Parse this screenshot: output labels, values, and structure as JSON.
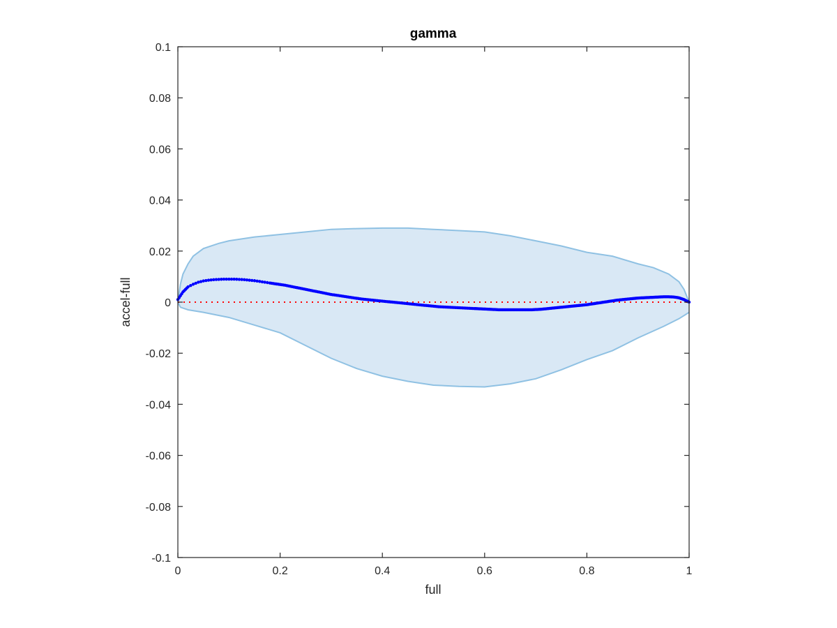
{
  "chart_data": {
    "type": "scatter",
    "title": "gamma",
    "xlabel": "full",
    "ylabel": "accel-full",
    "xlim": [
      0,
      1
    ],
    "ylim": [
      -0.1,
      0.1
    ],
    "x_ticks": [
      0,
      0.2,
      0.4,
      0.6,
      0.8,
      1
    ],
    "x_tick_labels": [
      "0",
      "0.2",
      "0.4",
      "0.6",
      "0.8",
      "1"
    ],
    "y_ticks": [
      -0.1,
      -0.08,
      -0.06,
      -0.04,
      -0.02,
      0,
      0.02,
      0.04,
      0.06,
      0.08,
      0.1
    ],
    "y_tick_labels": [
      "-0.1",
      "-0.08",
      "-0.06",
      "-0.04",
      "-0.02",
      "0",
      "0.02",
      "0.04",
      "0.06",
      "0.08",
      "0.1"
    ],
    "grid": false,
    "colors": {
      "band_fill": "#d9e8f5",
      "band_edge": "#8fc1e3",
      "points": "#0000ff",
      "reference_line": "#ff0000",
      "axes": "#262626"
    },
    "reference_line": {
      "y": 0,
      "style": "dotted"
    },
    "band_upper": {
      "x": [
        0,
        0.005,
        0.01,
        0.02,
        0.03,
        0.05,
        0.08,
        0.1,
        0.15,
        0.2,
        0.25,
        0.3,
        0.35,
        0.4,
        0.45,
        0.5,
        0.55,
        0.6,
        0.65,
        0.7,
        0.75,
        0.8,
        0.85,
        0.9,
        0.93,
        0.96,
        0.98,
        0.99,
        1
      ],
      "y": [
        0,
        0.007,
        0.011,
        0.015,
        0.018,
        0.021,
        0.023,
        0.024,
        0.0255,
        0.0265,
        0.0275,
        0.0285,
        0.0288,
        0.029,
        0.029,
        0.0285,
        0.028,
        0.0275,
        0.026,
        0.024,
        0.022,
        0.0195,
        0.018,
        0.015,
        0.0135,
        0.011,
        0.008,
        0.005,
        0
      ]
    },
    "band_lower": {
      "x": [
        0,
        0.005,
        0.02,
        0.05,
        0.1,
        0.15,
        0.2,
        0.25,
        0.3,
        0.35,
        0.4,
        0.45,
        0.5,
        0.55,
        0.6,
        0.65,
        0.7,
        0.75,
        0.8,
        0.85,
        0.9,
        0.95,
        0.98,
        1
      ],
      "y": [
        0,
        -0.002,
        -0.003,
        -0.004,
        -0.006,
        -0.009,
        -0.012,
        -0.017,
        -0.022,
        -0.026,
        -0.029,
        -0.031,
        -0.0325,
        -0.033,
        -0.0332,
        -0.032,
        -0.03,
        -0.0265,
        -0.0225,
        -0.019,
        -0.014,
        -0.0095,
        -0.0065,
        -0.004
      ]
    },
    "series": [
      {
        "x": [
          0,
          0.005,
          0.01,
          0.015,
          0.02,
          0.03,
          0.04,
          0.05,
          0.06,
          0.07,
          0.08,
          0.09,
          0.1,
          0.11,
          0.12,
          0.13,
          0.14,
          0.15,
          0.16,
          0.17,
          0.18,
          0.19,
          0.2,
          0.21,
          0.22,
          0.23,
          0.24,
          0.25,
          0.26,
          0.27,
          0.28,
          0.29,
          0.3,
          0.31,
          0.32,
          0.33,
          0.34,
          0.35,
          0.36,
          0.37,
          0.38,
          0.39,
          0.4,
          0.41,
          0.42,
          0.43,
          0.44,
          0.45,
          0.46,
          0.47,
          0.48,
          0.49,
          0.5,
          0.51,
          0.52,
          0.53,
          0.54,
          0.55,
          0.56,
          0.57,
          0.58,
          0.59,
          0.6,
          0.61,
          0.62,
          0.63,
          0.64,
          0.65,
          0.66,
          0.67,
          0.68,
          0.69,
          0.7,
          0.71,
          0.72,
          0.73,
          0.74,
          0.75,
          0.76,
          0.77,
          0.78,
          0.79,
          0.8,
          0.81,
          0.82,
          0.83,
          0.84,
          0.85,
          0.86,
          0.87,
          0.88,
          0.89,
          0.9,
          0.91,
          0.92,
          0.93,
          0.94,
          0.95,
          0.96,
          0.97,
          0.98,
          0.99,
          1
        ],
        "y": [
          0.001,
          0.0025,
          0.004,
          0.005,
          0.006,
          0.007,
          0.0078,
          0.0083,
          0.0086,
          0.0088,
          0.0089,
          0.009,
          0.009,
          0.009,
          0.0089,
          0.0088,
          0.0086,
          0.0084,
          0.0081,
          0.0078,
          0.0075,
          0.0072,
          0.0069,
          0.0066,
          0.0062,
          0.0058,
          0.0054,
          0.005,
          0.0046,
          0.0042,
          0.0038,
          0.0034,
          0.003,
          0.0027,
          0.0024,
          0.0021,
          0.0018,
          0.0015,
          0.0012,
          0.001,
          0.0008,
          0.0006,
          0.0004,
          0.0002,
          0.0,
          -0.0002,
          -0.0004,
          -0.0006,
          -0.0008,
          -0.001,
          -0.0012,
          -0.0014,
          -0.0016,
          -0.0018,
          -0.0019,
          -0.002,
          -0.0021,
          -0.0022,
          -0.0023,
          -0.0024,
          -0.0025,
          -0.0026,
          -0.0027,
          -0.0028,
          -0.0029,
          -0.003,
          -0.003,
          -0.003,
          -0.003,
          -0.003,
          -0.003,
          -0.003,
          -0.0029,
          -0.0028,
          -0.0026,
          -0.0024,
          -0.0022,
          -0.002,
          -0.0018,
          -0.0016,
          -0.0014,
          -0.0012,
          -0.001,
          -0.0007,
          -0.0004,
          -0.0001,
          0.0002,
          0.0005,
          0.0008,
          0.001,
          0.0012,
          0.0014,
          0.0016,
          0.0017,
          0.0018,
          0.0019,
          0.002,
          0.0021,
          0.0021,
          0.002,
          0.0017,
          0.001,
          0.0
        ]
      }
    ]
  }
}
